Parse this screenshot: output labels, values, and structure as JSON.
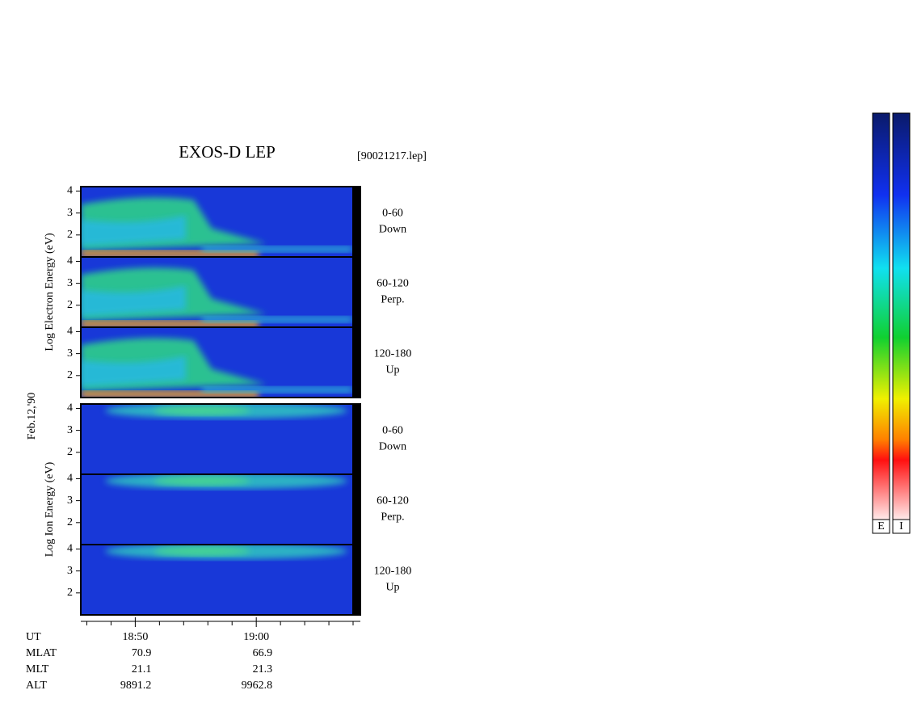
{
  "chart_data": {
    "type": "spectrogram",
    "title": "EXOS-D LEP",
    "file": "[90021217.lep]",
    "date_label": "Feb.12,'90",
    "ylim": [
      1,
      4.2
    ],
    "yticks": [
      2,
      3,
      4
    ],
    "xlim": [
      45.5,
      68.6
    ],
    "xticks": [
      {
        "value": 50,
        "label": "18:50"
      },
      {
        "value": 60,
        "label": "19:00"
      }
    ],
    "minor_xticks": [
      46,
      48,
      52,
      54,
      56,
      58,
      62,
      64,
      66,
      68
    ],
    "groups": [
      {
        "ylabel": "Log  Electron  Energy (eV)",
        "panels": [
          {
            "angle": "0-60",
            "direction": "Down"
          },
          {
            "angle": "60-120",
            "direction": "Perp."
          },
          {
            "angle": "120-180",
            "direction": "Up"
          }
        ]
      },
      {
        "ylabel": "Log  Ion  Energy (eV)",
        "panels": [
          {
            "angle": "0-60",
            "direction": "Down"
          },
          {
            "angle": "60-120",
            "direction": "Perp."
          },
          {
            "angle": "120-180",
            "direction": "Up"
          }
        ]
      }
    ],
    "orbit": {
      "labels": [
        "UT",
        "MLAT",
        "MLT",
        "ALT"
      ],
      "columns": [
        [
          70.9,
          21.1,
          9891.2
        ],
        [
          66.9,
          21.3,
          9962.8
        ]
      ]
    },
    "colorbars": [
      "E",
      "I"
    ]
  }
}
